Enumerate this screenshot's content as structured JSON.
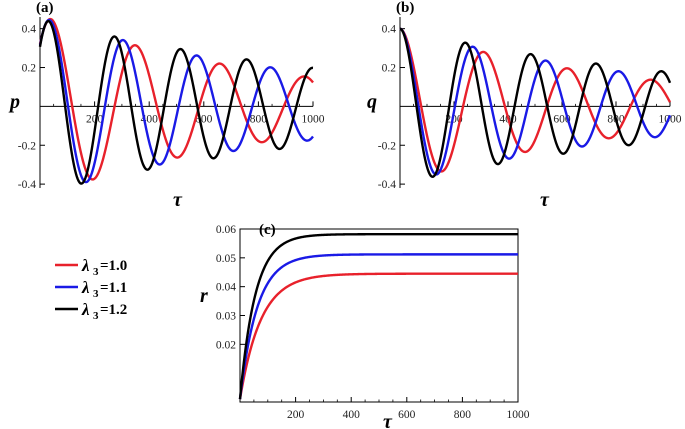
{
  "chart_data": [
    {
      "panel": "(a)",
      "type": "line",
      "xlabel": "τ",
      "ylabel": "p",
      "xlim": [
        0,
        1000
      ],
      "ylim": [
        -0.42,
        0.46
      ],
      "xticks": [
        200,
        400,
        600,
        800,
        1000
      ],
      "yticks": [
        -0.4,
        -0.2,
        0.2,
        0.4
      ],
      "xtick_labels": [
        "200",
        "400",
        "600",
        "800",
        "1000"
      ],
      "ytick_labels": [
        "-0.4",
        "-0.2",
        "0.2",
        "0.4"
      ],
      "series": [
        {
          "name": "λ3=1.0",
          "color": "#e8212b",
          "model": {
            "a0": 0.47,
            "decay": 0.00115,
            "period": 310,
            "phase": 0.75
          }
        },
        {
          "name": "λ3=1.1",
          "color": "#1a1ae6",
          "model": {
            "a0": 0.46,
            "decay": 0.00098,
            "period": 270,
            "phase": 0.75
          }
        },
        {
          "name": "λ3=1.2",
          "color": "#000000",
          "model": {
            "a0": 0.45,
            "decay": 0.00082,
            "period": 242,
            "phase": 0.75
          }
        }
      ]
    },
    {
      "panel": "(b)",
      "type": "line",
      "xlabel": "τ",
      "ylabel": "q",
      "xlim": [
        0,
        1000
      ],
      "ylim": [
        -0.42,
        0.46
      ],
      "xticks": [
        200,
        400,
        600,
        800,
        1000
      ],
      "yticks": [
        -0.4,
        -0.2,
        0.2,
        0.4
      ],
      "xtick_labels": [
        "200",
        "400",
        "600",
        "800",
        "1000"
      ],
      "ytick_labels": [
        "-0.4",
        "-0.2",
        "0.2",
        "0.4"
      ],
      "series": [
        {
          "name": "λ3=1.0",
          "color": "#e8212b",
          "model": {
            "a0": 0.4,
            "decay": 0.00115,
            "period": 310,
            "phase": 1.55
          }
        },
        {
          "name": "λ3=1.1",
          "color": "#1a1ae6",
          "model": {
            "a0": 0.4,
            "decay": 0.00098,
            "period": 270,
            "phase": 1.55
          }
        },
        {
          "name": "λ3=1.2",
          "color": "#000000",
          "model": {
            "a0": 0.4,
            "decay": 0.00082,
            "period": 242,
            "phase": 1.55
          }
        }
      ]
    },
    {
      "panel": "(c)",
      "type": "line",
      "xlabel": "τ",
      "ylabel": "r",
      "xlim": [
        0,
        1000
      ],
      "ylim": [
        0.0,
        0.06
      ],
      "xticks": [
        200,
        400,
        600,
        800,
        1000
      ],
      "yticks": [
        0.02,
        0.03,
        0.04,
        0.05,
        0.06
      ],
      "xtick_labels": [
        "200",
        "400",
        "600",
        "800",
        "1000"
      ],
      "ytick_labels": [
        "0.02",
        "0.03",
        "0.04",
        "0.05",
        "0.06"
      ],
      "series": [
        {
          "name": "λ3=1.0",
          "color": "#e8212b",
          "model": {
            "r0": 0.001,
            "rinf": 0.0445,
            "tau": 75
          }
        },
        {
          "name": "λ3=1.1",
          "color": "#1a1ae6",
          "model": {
            "r0": 0.001,
            "rinf": 0.0512,
            "tau": 62
          }
        },
        {
          "name": "λ3=1.2",
          "color": "#000000",
          "model": {
            "r0": 0.001,
            "rinf": 0.0582,
            "tau": 55
          }
        }
      ]
    }
  ],
  "legend": {
    "placement": "left",
    "items": [
      {
        "symbol": "λ",
        "sub": "3",
        "text": "=1.0",
        "color": "#e8212b"
      },
      {
        "symbol": "λ",
        "sub": "3",
        "text": "=1.1",
        "color": "#1a1ae6"
      },
      {
        "symbol": "λ",
        "sub": "3",
        "text": "=1.2",
        "color": "#000000"
      }
    ]
  }
}
